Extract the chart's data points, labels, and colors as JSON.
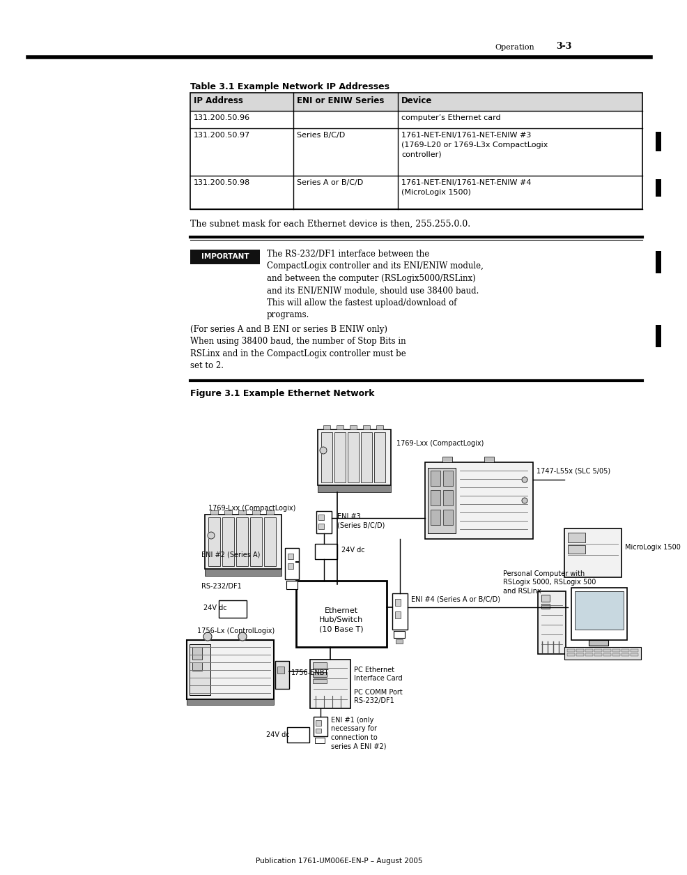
{
  "page_header_section": "Operation",
  "page_header_num": "3-3",
  "table_title": "Table 3.1 Example Network IP Addresses",
  "col_headers": [
    "IP Address",
    "ENI or ENIW Series",
    "Device"
  ],
  "row1": [
    "131.200.50.96",
    "",
    "computer’s Ethernet card"
  ],
  "row2_ip": "131.200.50.97",
  "row2_series": "Series B/C/D",
  "row2_device": "1761-NET-ENI/1761-NET-ENIW #3\n(1769-L20 or 1769-L3x CompactLogix\ncontroller)",
  "row3_ip": "131.200.50.98",
  "row3_series": "Series A or B/C/D",
  "row3_device": "1761-NET-ENI/1761-NET-ENIW #4\n(MicroLogix 1500)",
  "subnet_text": "The subnet mask for each Ethernet device is then, 255.255.0.0.",
  "important_label": "IMPORTANT",
  "imp_para1": "The RS-232/DF1 interface between the\nCompactLogix controller and its ENI/ENIW module,\nand between the computer (RSLogix5000/RSLinx)\nand its ENI/ENIW module, should use 38400 baud.\nThis will allow the fastest upload/download of\nprograms.",
  "imp_para2": "(For series A and B ENI or series B ENIW only)\nWhen using 38400 baud, the number of Stop Bits in\nRSLinx and in the CompactLogix controller must be\nset to 2.",
  "fig_title": "Figure 3.1 Example Ethernet Network",
  "footer": "Publication 1761-UM006E-EN-P – August 2005",
  "bg": "#ffffff",
  "hub_label": "Ethernet\nHub/Switch\n(10 Base T)",
  "label_compactlogix_top": "1769-Lxx (CompactLogix)",
  "label_slc": "1747-L55x (SLC 5/05)",
  "label_eni3": "ENI #3\n(Series B/C/D)",
  "label_24vdc_top": "24V dc",
  "label_compactlogix_left": "1769-Lxx (CompactLogix)",
  "label_rs232": "RS-232/DF1",
  "label_eni2": "ENI #2 (Series A)",
  "label_24vdc_left": "24V dc",
  "label_micrologix": "MicroLogix 1500",
  "label_eni4": "ENI #4 (Series A or B/C/D)",
  "label_pc": "Personal Computer with\nRSLogix 5000, RSLogix 500\nand RSLinx",
  "label_controllogix": "1756-Lx (ControlLogix)",
  "label_enbt": "1756-ENBT",
  "label_pc_eth": "PC Ethernet\nInterface Card",
  "label_pc_comm": "PC COMM Port\nRS-232/DF1",
  "label_eni1": "ENI #1 (only\nnecessary for\nconnection to\nseries A ENI #2)",
  "label_24vdc_bot": "24V dc"
}
